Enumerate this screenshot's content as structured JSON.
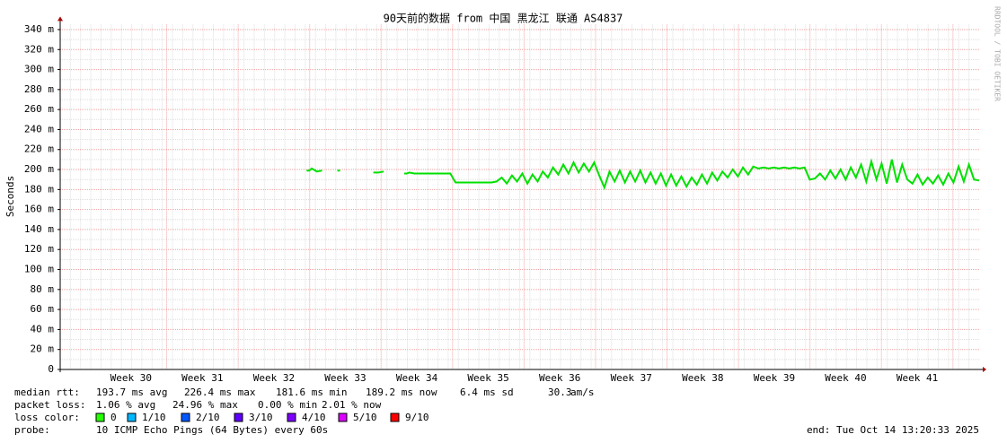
{
  "chart_data": {
    "type": "line",
    "title": "90天前的数据 from 中国 黑龙江 联通 AS4837",
    "y_label": "Seconds",
    "side_text": "RRDTOOL / TOBI OETIKER",
    "ylim": [
      0,
      0.345
    ],
    "yticks": [
      0,
      {
        "value": 0.02,
        "label": "20 m"
      },
      {
        "value": 0.04,
        "label": "40 m"
      },
      {
        "value": 0.06,
        "label": "60 m"
      },
      {
        "value": 0.08,
        "label": "80 m"
      },
      {
        "value": 0.1,
        "label": "100 m"
      },
      {
        "value": 0.12,
        "label": "120 m"
      },
      {
        "value": 0.14,
        "label": "140 m"
      },
      {
        "value": 0.16,
        "label": "160 m"
      },
      {
        "value": 0.18,
        "label": "180 m"
      },
      {
        "value": 0.2,
        "label": "200 m"
      },
      {
        "value": 0.22,
        "label": "220 m"
      },
      {
        "value": 0.24,
        "label": "240 m"
      },
      {
        "value": 0.26,
        "label": "260 m"
      },
      {
        "value": 0.28,
        "label": "280 m"
      },
      {
        "value": 0.3,
        "label": "300 m"
      },
      {
        "value": 0.32,
        "label": "320 m"
      },
      {
        "value": 0.34,
        "label": "340 m"
      }
    ],
    "grid": true,
    "x_labels": [
      "Week 30",
      "Week 31",
      "Week 32",
      "Week 33",
      "Week 34",
      "Week 35",
      "Week 36",
      "Week 37",
      "Week 38",
      "Week 39",
      "Week 40",
      "Week 41"
    ],
    "series": [
      {
        "color": "#00e000",
        "values": [
          null,
          null,
          null,
          null,
          null,
          null,
          null,
          null,
          null,
          null,
          null,
          null,
          null,
          null,
          null,
          null,
          null,
          null,
          null,
          null,
          null,
          null,
          null,
          null,
          null,
          null,
          null,
          null,
          null,
          null,
          null,
          null,
          null,
          null,
          null,
          null,
          null,
          null,
          null,
          null,
          null,
          null,
          null,
          null,
          null,
          null,
          null,
          null,
          0.199,
          0.201,
          0.198,
          0.199,
          null,
          null,
          0.199,
          null,
          null,
          null,
          null,
          null,
          null,
          0.197,
          0.197,
          0.198,
          null,
          null,
          null,
          0.196,
          0.197,
          0.196,
          0.196,
          0.196,
          0.196,
          0.196,
          0.196,
          0.196,
          0.196,
          0.187,
          0.187,
          0.187,
          0.187,
          0.187,
          0.187,
          0.187,
          0.187,
          0.188,
          0.192,
          0.186,
          0.194,
          0.188,
          0.196,
          0.186,
          0.195,
          0.188,
          0.198,
          0.192,
          0.202,
          0.195,
          0.205,
          0.196,
          0.207,
          0.197,
          0.206,
          0.198,
          0.207,
          0.194,
          0.182,
          0.198,
          0.188,
          0.199,
          0.187,
          0.198,
          0.188,
          0.199,
          0.187,
          0.197,
          0.186,
          0.196,
          0.184,
          0.195,
          0.184,
          0.193,
          0.183,
          0.192,
          0.185,
          0.195,
          0.186,
          0.197,
          0.189,
          0.198,
          0.192,
          0.2,
          0.193,
          0.202,
          0.195,
          0.203,
          0.201,
          0.202,
          0.201,
          0.202,
          0.201,
          0.202,
          0.201,
          0.202,
          0.201,
          0.202,
          0.19,
          0.191,
          0.196,
          0.19,
          0.199,
          0.191,
          0.2,
          0.19,
          0.202,
          0.192,
          0.205,
          0.188,
          0.208,
          0.19,
          0.206,
          0.186,
          0.21,
          0.187,
          0.205,
          0.19,
          0.186,
          0.195,
          0.185,
          0.192,
          0.186,
          0.194,
          0.185,
          0.196,
          0.187,
          0.203,
          0.188,
          0.205,
          0.19,
          0.189
        ]
      }
    ]
  },
  "legend": {
    "median_rtt": [
      "median rtt:",
      "193.7 ms avg",
      "226.4 ms max",
      "181.6 ms min",
      "189.2 ms now",
      "6.4 ms sd",
      "30.3",
      "am/s"
    ],
    "packet_loss": [
      "packet loss:",
      "1.06 % avg",
      "24.96 % max",
      "0.00 % min",
      "2.01 % now"
    ],
    "loss_color_label": "loss color:",
    "loss_colors": [
      {
        "label": "0",
        "color": "#26ff00"
      },
      {
        "label": "1/10",
        "color": "#00b8ff"
      },
      {
        "label": "2/10",
        "color": "#0059ff"
      },
      {
        "label": "3/10",
        "color": "#5e00ff"
      },
      {
        "label": "4/10",
        "color": "#7e00ff"
      },
      {
        "label": "5/10",
        "color": "#dd00ff"
      },
      {
        "label": "9/10",
        "color": "#ff0000"
      }
    ],
    "probe_label": "probe:",
    "probe": "10 ICMP Echo Pings (64 Bytes) every 60s",
    "end": "end: Tue Oct 14 13:20:33 2025"
  }
}
